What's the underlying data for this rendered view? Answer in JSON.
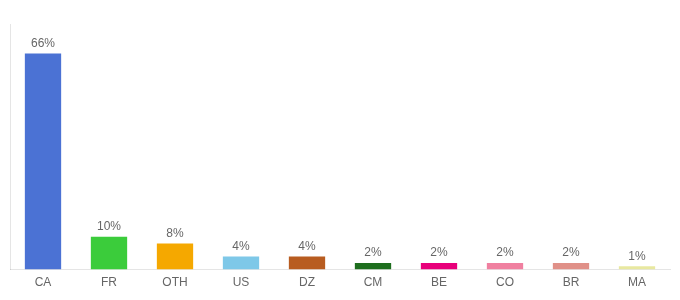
{
  "chart_data": {
    "type": "bar",
    "categories": [
      "CA",
      "FR",
      "OTH",
      "US",
      "DZ",
      "CM",
      "BE",
      "CO",
      "BR",
      "MA"
    ],
    "values": [
      66,
      10,
      8,
      4,
      4,
      2,
      2,
      2,
      2,
      1
    ],
    "value_labels": [
      "66%",
      "10%",
      "8%",
      "4%",
      "4%",
      "2%",
      "2%",
      "2%",
      "2%",
      "1%"
    ],
    "colors": [
      "#4b72d4",
      "#3bcc3b",
      "#f5a800",
      "#7ec8e8",
      "#b85c20",
      "#1e6e1e",
      "#e8007a",
      "#f080a0",
      "#e09088",
      "#e8e8a0"
    ],
    "ylim": [
      0,
      75
    ],
    "grid": false,
    "data_labels": true,
    "tick_labels": "x"
  }
}
